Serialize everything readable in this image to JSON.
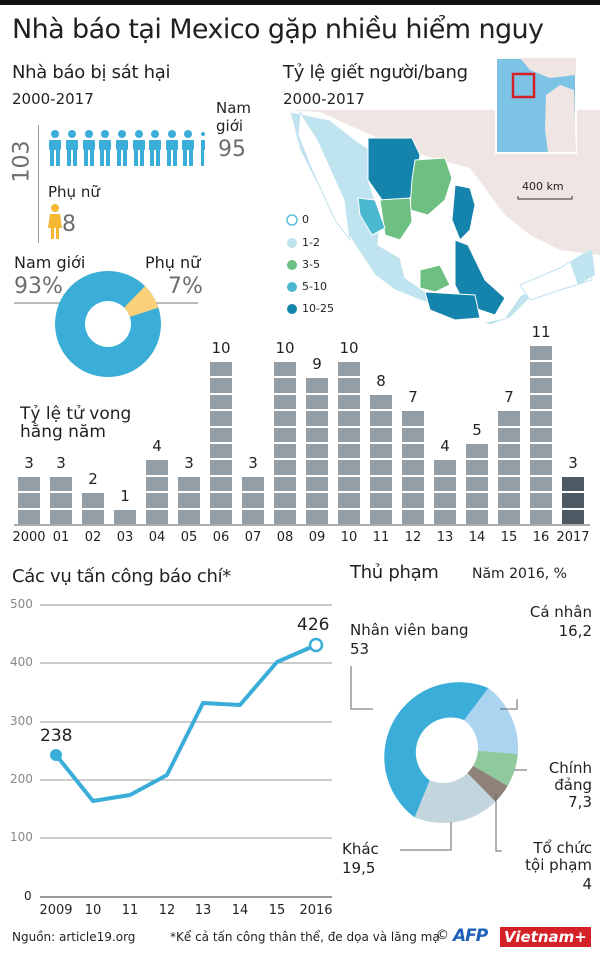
{
  "title": "Nhà báo tại Mexico gặp nhiều hiểm nguy",
  "killed": {
    "title": "Nhà báo bị sát hại",
    "period": "2000-2017",
    "total": "103",
    "male_label_line1": "Nam",
    "male_label_line2": "giới",
    "male_count": "95",
    "female_label": "Phụ nữ",
    "female_count": "8",
    "icon_colors": {
      "male": "#3aaed8",
      "female": "#f6b733"
    }
  },
  "gender_share": {
    "male_label": "Nam giới",
    "male_pct": "93%",
    "female_label": "Phụ nữ",
    "female_pct": "7%"
  },
  "map": {
    "title": "Tỷ lệ giết người/bang",
    "period": "2000-2017",
    "scale": "400 km",
    "legend": [
      {
        "label": "0",
        "color": "#ffffff",
        "stroke": "#5bc0de"
      },
      {
        "label": "1-2",
        "color": "#bfe3ef",
        "stroke": "#bfe3ef"
      },
      {
        "label": "3-5",
        "color": "#6dbf82",
        "stroke": "#6dbf82"
      },
      {
        "label": "5-10",
        "color": "#4ab8d0",
        "stroke": "#4ab8d0"
      },
      {
        "label": "10-25",
        "color": "#1584ad",
        "stroke": "#1584ad"
      }
    ]
  },
  "annual": {
    "title_line1": "Tỷ lệ tử vong",
    "title_line2": "hằng năm"
  },
  "attacks": {
    "title": "Các vụ tấn công báo chí*",
    "first_label": "238",
    "last_label": "426"
  },
  "perpetrators": {
    "title": "Thủ phạm",
    "subtitle": "Năm 2016, %",
    "labels": {
      "state_name": "Nhân viên bang",
      "state_value": "53",
      "individual_name": "Cá nhân",
      "individual_value": "16,2",
      "party_line1": "Chính",
      "party_line2": "đảng",
      "party_value": "7,3",
      "crime_line1": "Tổ chức",
      "crime_line2": "tội phạm",
      "crime_value": "4",
      "other_name": "Khác",
      "other_value": "19,5"
    }
  },
  "footer": {
    "source": "Nguồn: article19.org",
    "note": "*Kể cả tấn công thân thể, đe dọa và lăng mạ",
    "copyright": "©",
    "afp": "AFP",
    "vietnam": "Vietnam+"
  },
  "chart_data": [
    {
      "type": "bar",
      "title": "Tỷ lệ tử vong hằng năm",
      "categories": [
        "2000",
        "01",
        "02",
        "03",
        "04",
        "05",
        "06",
        "07",
        "08",
        "09",
        "10",
        "11",
        "12",
        "13",
        "14",
        "15",
        "16",
        "2017"
      ],
      "values": [
        3,
        3,
        2,
        1,
        4,
        3,
        10,
        3,
        10,
        9,
        10,
        8,
        7,
        4,
        5,
        7,
        11,
        3
      ],
      "colors": {
        "default": "#939ea6",
        "highlight": "#4e5a63"
      },
      "xlabel": "",
      "ylabel": ""
    },
    {
      "type": "line",
      "title": "Các vụ tấn công báo chí*",
      "categories": [
        "2009",
        "10",
        "11",
        "12",
        "13",
        "14",
        "15",
        "2016"
      ],
      "values": [
        238,
        165,
        175,
        208,
        332,
        328,
        400,
        426
      ],
      "yticks": [
        0,
        100,
        200,
        300,
        400,
        500
      ],
      "ylim": [
        0,
        500
      ],
      "grid": true,
      "color": "#3aaed8"
    },
    {
      "type": "pie",
      "title": "Nhà báo bị sát hại theo giới tính",
      "categories": [
        "Nam giới",
        "Phụ nữ"
      ],
      "values": [
        93,
        7
      ],
      "colors": [
        "#3aaed8",
        "#fbd07a"
      ]
    },
    {
      "type": "pie",
      "title": "Thủ phạm — Năm 2016, %",
      "categories": [
        "Nhân viên bang",
        "Cá nhân",
        "Chính đảng",
        "Tổ chức tội phạm",
        "Khác"
      ],
      "values": [
        53,
        16.2,
        7.3,
        4,
        19.5
      ],
      "colors": [
        "#3aaed8",
        "#aad4f0",
        "#8fc99c",
        "#8e8178",
        "#c3d6de"
      ]
    }
  ]
}
